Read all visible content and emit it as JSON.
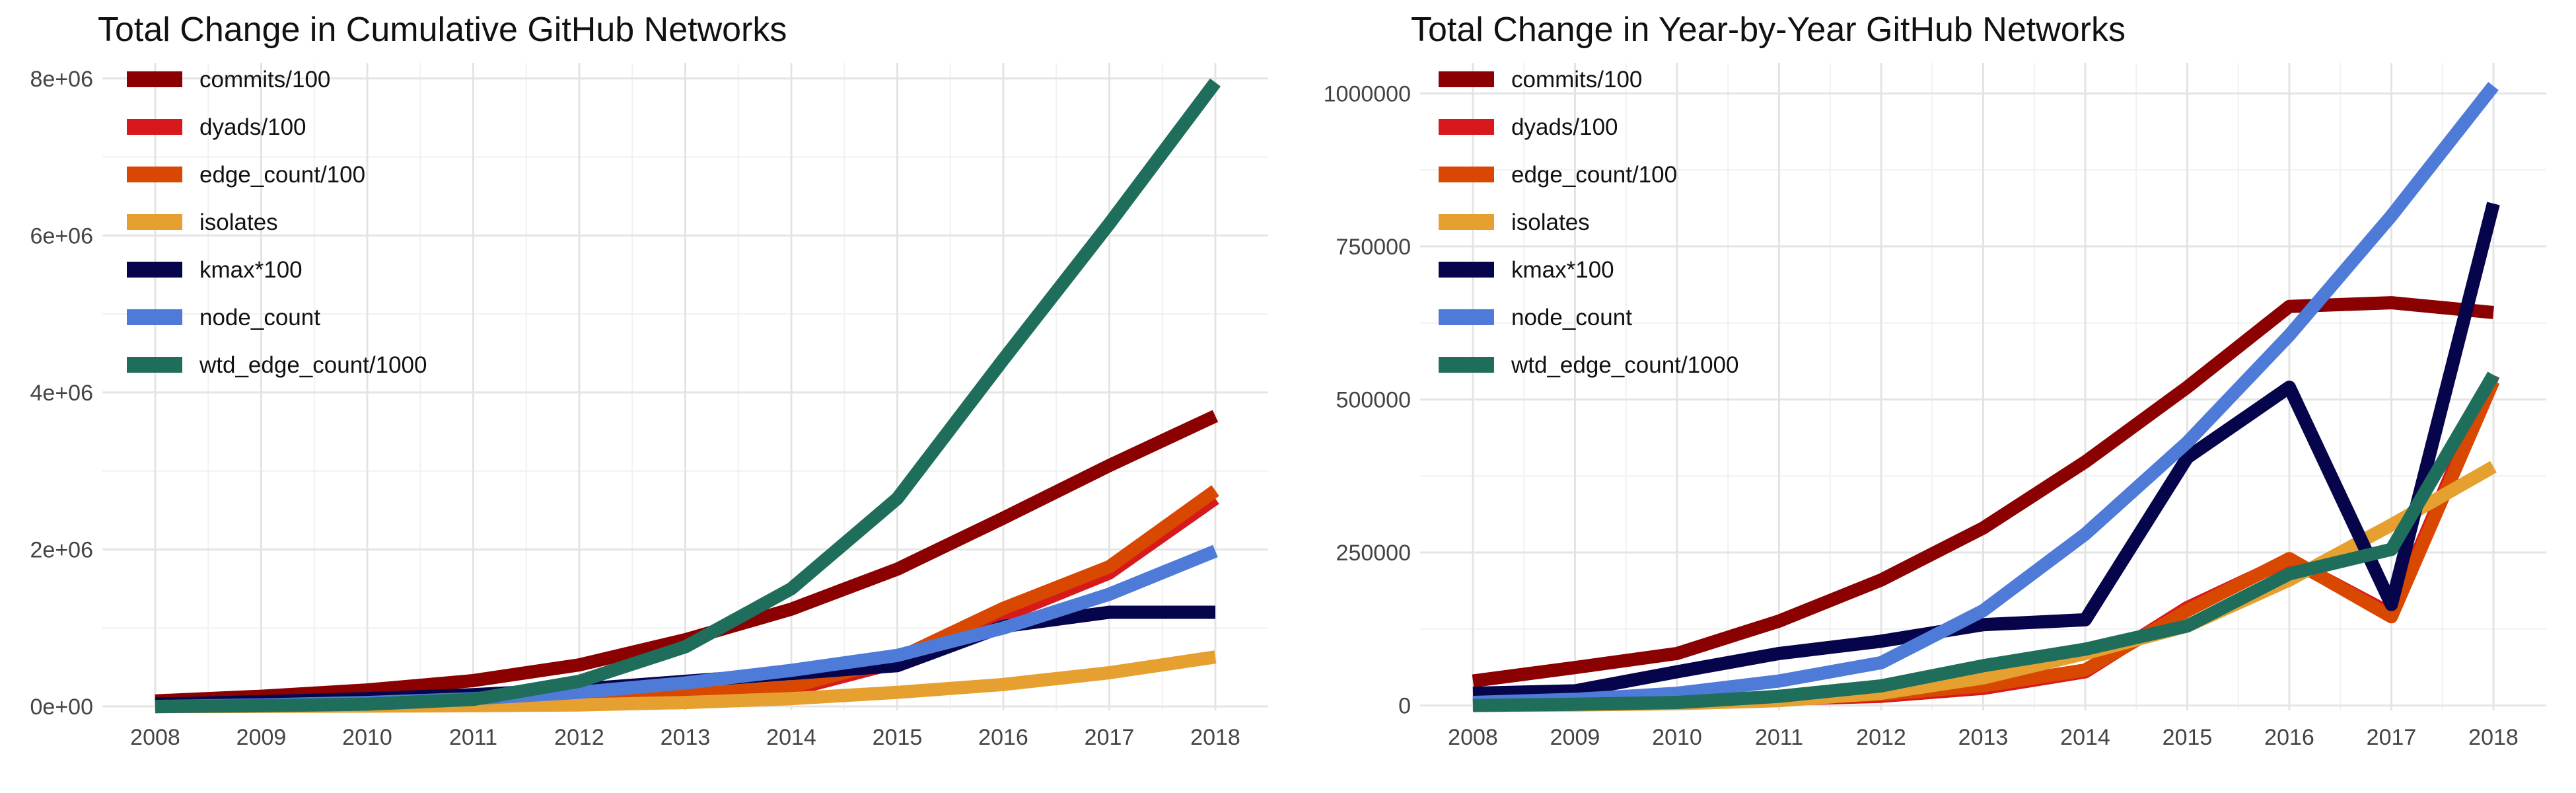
{
  "chart_data": [
    {
      "type": "line",
      "title": "Total Change in Cumulative GitHub Networks",
      "xlabel": "",
      "ylabel": "",
      "x": [
        2008,
        2009,
        2010,
        2011,
        2012,
        2013,
        2014,
        2015,
        2016,
        2017,
        2018
      ],
      "xticks": [
        "2008",
        "2009",
        "2010",
        "2011",
        "2012",
        "2013",
        "2014",
        "2015",
        "2016",
        "2017",
        "2018"
      ],
      "ylim": [
        -50000,
        8200000
      ],
      "yticks": [
        {
          "value": 0,
          "label": "0e+00"
        },
        {
          "value": 2000000,
          "label": "2e+06"
        },
        {
          "value": 4000000,
          "label": "4e+06"
        },
        {
          "value": 6000000,
          "label": "6e+06"
        },
        {
          "value": 8000000,
          "label": "8e+06"
        }
      ],
      "grid": true,
      "legend_position": "top-left",
      "series": [
        {
          "name": "commits/100",
          "color": "#8b0000",
          "values": [
            70000,
            130000,
            210000,
            330000,
            530000,
            850000,
            1240000,
            1750000,
            2400000,
            3070000,
            3700000
          ]
        },
        {
          "name": "dyads/100",
          "color": "#d7191c",
          "values": [
            0,
            5000,
            15000,
            30000,
            60000,
            120000,
            210000,
            560000,
            1150000,
            1700000,
            2650000
          ]
        },
        {
          "name": "edge_count/100",
          "color": "#d94801",
          "values": [
            0,
            8000,
            20000,
            40000,
            80000,
            150000,
            250000,
            610000,
            1250000,
            1780000,
            2750000
          ]
        },
        {
          "name": "isolates",
          "color": "#e6a030",
          "values": [
            0,
            2000,
            5000,
            10000,
            20000,
            50000,
            100000,
            180000,
            280000,
            430000,
            630000
          ]
        },
        {
          "name": "kmax*100",
          "color": "#06044a",
          "values": [
            30000,
            60000,
            100000,
            150000,
            220000,
            320000,
            420000,
            520000,
            1020000,
            1200000,
            1200000
          ]
        },
        {
          "name": "node_count",
          "color": "#4f7bd8",
          "values": [
            0,
            20000,
            50000,
            100000,
            180000,
            300000,
            460000,
            650000,
            1000000,
            1430000,
            1980000
          ]
        },
        {
          "name": "wtd_edge_count/1000",
          "color": "#1f6e5c",
          "values": [
            0,
            10000,
            30000,
            90000,
            320000,
            760000,
            1500000,
            2650000,
            4420000,
            6150000,
            7950000
          ]
        }
      ]
    },
    {
      "type": "line",
      "title": "Total Change in Year-by-Year GitHub Networks",
      "xlabel": "",
      "ylabel": "",
      "x": [
        2008,
        2009,
        2010,
        2011,
        2012,
        2013,
        2014,
        2015,
        2016,
        2017,
        2018
      ],
      "xticks": [
        "2008",
        "2009",
        "2010",
        "2011",
        "2012",
        "2013",
        "2014",
        "2015",
        "2016",
        "2017",
        "2018"
      ],
      "ylim": [
        -8000,
        1050000
      ],
      "yticks": [
        {
          "value": 0,
          "label": "0"
        },
        {
          "value": 250000,
          "label": "250000"
        },
        {
          "value": 500000,
          "label": "500000"
        },
        {
          "value": 750000,
          "label": "750000"
        },
        {
          "value": 1000000,
          "label": "1000000"
        }
      ],
      "grid": true,
      "legend_position": "top-left",
      "series": [
        {
          "name": "commits/100",
          "color": "#8b0000",
          "values": [
            40000,
            62000,
            85000,
            138000,
            205000,
            290000,
            398000,
            520000,
            652000,
            658000,
            642000
          ]
        },
        {
          "name": "dyads/100",
          "color": "#d7191c",
          "values": [
            2000,
            3000,
            5000,
            10000,
            15000,
            28000,
            55000,
            160000,
            238000,
            150000,
            540000
          ]
        },
        {
          "name": "edge_count/100",
          "color": "#d94801",
          "values": [
            3000,
            4000,
            6000,
            11000,
            18000,
            32000,
            58000,
            155000,
            240000,
            145000,
            530000
          ]
        },
        {
          "name": "isolates",
          "color": "#e6a030",
          "values": [
            0,
            1000,
            3000,
            8000,
            20000,
            45000,
            85000,
            130000,
            205000,
            295000,
            390000
          ]
        },
        {
          "name": "kmax*100",
          "color": "#06044a",
          "values": [
            20000,
            24000,
            55000,
            85000,
            105000,
            132000,
            140000,
            405000,
            520000,
            165000,
            820000
          ]
        },
        {
          "name": "node_count",
          "color": "#4f7bd8",
          "values": [
            5000,
            10000,
            20000,
            40000,
            70000,
            155000,
            280000,
            430000,
            605000,
            800000,
            1012000
          ]
        },
        {
          "name": "wtd_edge_count/1000",
          "color": "#1f6e5c",
          "values": [
            0,
            2000,
            5000,
            15000,
            32000,
            65000,
            92000,
            130000,
            215000,
            255000,
            540000
          ]
        }
      ]
    }
  ]
}
